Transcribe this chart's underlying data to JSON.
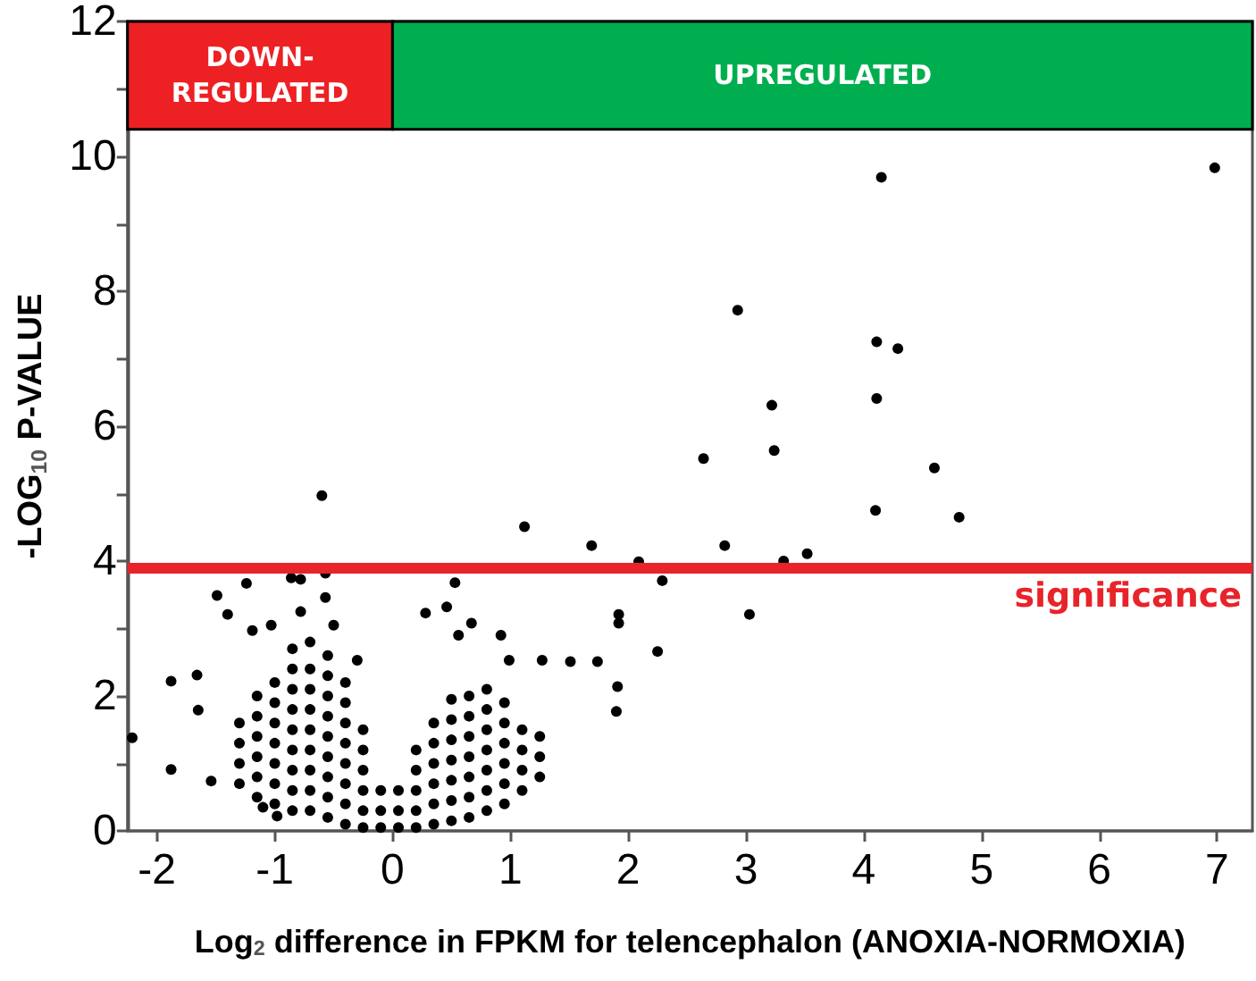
{
  "chart_data": {
    "type": "scatter",
    "xlabel": "Log$_{2}$ difference in FPKM for telencephalon (ANOXIA-NORMOXIA)",
    "ylabel": "-LOG$_{10}$ P-VALUE",
    "xlim": [
      -2.25,
      7.3
    ],
    "xticks": [
      -2,
      -1,
      0,
      1,
      2,
      3,
      4,
      5,
      6,
      7
    ],
    "ylim": [
      0,
      12
    ],
    "yticks": [
      0,
      {
        "value": 1,
        "label": null
      },
      2,
      {
        "value": 3,
        "label": null
      },
      4,
      {
        "value": 5,
        "label": null
      },
      6,
      {
        "value": 7,
        "label": null
      },
      8,
      {
        "value": 9,
        "label": null
      },
      10,
      {
        "value": 11,
        "label": null
      },
      12
    ],
    "marker": "circle",
    "color": "#000000",
    "ref_lines": [
      {
        "axis": "y",
        "value": 3.9,
        "label": "significance",
        "color": "#e8232a"
      }
    ],
    "bands": [
      {
        "axis": "x",
        "from": -2.25,
        "to": 0,
        "label": "DOWN-REGULATED",
        "color": "#ed2024"
      },
      {
        "axis": "x",
        "from": 0,
        "to": 7.3,
        "label": "UPREGULATED",
        "color": "#00ae4f"
      }
    ],
    "x": [
      4.15,
      6.98,
      2.93,
      4.11,
      4.29,
      3.22,
      4.11,
      2.64,
      3.24,
      4.6,
      4.1,
      4.81,
      2.82,
      3.32,
      3.52,
      1.12,
      1.69,
      2.09,
      2.29,
      3.03,
      1.92,
      1.92,
      2.25,
      1.91,
      1.9,
      1.74,
      1.51,
      0.53,
      0.67,
      0.46,
      0.28,
      0.56,
      0.92,
      0.99,
      1.27,
      -2.21,
      -1.88,
      -1.88,
      -1.66,
      -1.49,
      -1.4,
      -1.24,
      -1.19,
      -1.03,
      -0.86,
      -0.78,
      -0.57,
      -0.57,
      -0.78,
      -0.5,
      -0.3,
      -1.65,
      -1.54,
      -1.1,
      -0.98,
      -0.6,
      -1.3,
      -1.3,
      -1.3,
      -1.3,
      -1.15,
      -1.15,
      -1.15,
      -1.15,
      -1.15,
      -1.15,
      -1.0,
      -1.0,
      -1.0,
      -1.0,
      -1.0,
      -1.0,
      -1.0,
      -0.85,
      -0.85,
      -0.85,
      -0.85,
      -0.85,
      -0.85,
      -0.85,
      -0.85,
      -0.85,
      -0.7,
      -0.7,
      -0.7,
      -0.7,
      -0.7,
      -0.7,
      -0.7,
      -0.7,
      -0.7,
      -0.55,
      -0.55,
      -0.55,
      -0.55,
      -0.55,
      -0.55,
      -0.55,
      -0.55,
      -0.55,
      -0.4,
      -0.4,
      -0.4,
      -0.4,
      -0.4,
      -0.4,
      -0.4,
      -0.4,
      -0.25,
      -0.25,
      -0.25,
      -0.25,
      -0.25,
      -0.25,
      -0.1,
      -0.1,
      -0.1,
      0.05,
      0.05,
      0.05,
      0.2,
      0.2,
      0.2,
      0.2,
      0.2,
      0.35,
      0.35,
      0.35,
      0.35,
      0.35,
      0.35,
      0.5,
      0.5,
      0.5,
      0.5,
      0.5,
      0.5,
      0.5,
      0.65,
      0.65,
      0.65,
      0.65,
      0.65,
      0.65,
      0.65,
      0.8,
      0.8,
      0.8,
      0.8,
      0.8,
      0.8,
      0.8,
      0.95,
      0.95,
      0.95,
      0.95,
      0.95,
      0.95,
      1.1,
      1.1,
      1.1,
      1.1,
      1.25,
      1.25,
      1.25
    ],
    "values": [
      9.69,
      9.83,
      7.72,
      7.25,
      7.15,
      6.31,
      6.41,
      5.52,
      5.64,
      5.38,
      4.75,
      4.65,
      4.23,
      4.0,
      4.11,
      4.51,
      4.23,
      3.99,
      3.71,
      3.21,
      3.21,
      3.08,
      2.66,
      2.14,
      1.77,
      2.51,
      2.51,
      3.68,
      3.08,
      3.32,
      3.23,
      2.9,
      2.9,
      2.53,
      2.53,
      1.38,
      0.91,
      2.22,
      2.31,
      3.49,
      3.21,
      3.67,
      2.97,
      3.05,
      3.75,
      3.73,
      3.82,
      3.46,
      3.25,
      3.05,
      2.53,
      1.79,
      0.74,
      0.35,
      0.22,
      4.97,
      0.7,
      1.0,
      1.3,
      1.6,
      0.5,
      0.8,
      1.1,
      1.4,
      1.7,
      2.0,
      0.4,
      0.7,
      1.0,
      1.3,
      1.6,
      1.9,
      2.2,
      0.3,
      0.6,
      0.9,
      1.2,
      1.5,
      1.8,
      2.1,
      2.4,
      2.7,
      0.3,
      0.6,
      0.9,
      1.2,
      1.5,
      1.8,
      2.1,
      2.4,
      2.8,
      0.2,
      0.5,
      0.8,
      1.1,
      1.4,
      1.7,
      2.0,
      2.3,
      2.6,
      0.1,
      0.4,
      0.7,
      1.0,
      1.3,
      1.6,
      1.9,
      2.2,
      0.05,
      0.3,
      0.6,
      0.9,
      1.2,
      1.5,
      0.05,
      0.3,
      0.6,
      0.05,
      0.3,
      0.6,
      0.05,
      0.3,
      0.6,
      0.9,
      1.2,
      0.1,
      0.4,
      0.7,
      1.0,
      1.3,
      1.6,
      0.15,
      0.45,
      0.75,
      1.05,
      1.35,
      1.65,
      1.95,
      0.2,
      0.5,
      0.8,
      1.1,
      1.4,
      1.7,
      2.0,
      0.3,
      0.6,
      0.9,
      1.2,
      1.5,
      1.8,
      2.1,
      0.4,
      0.7,
      1.0,
      1.3,
      1.6,
      1.9,
      0.6,
      0.9,
      1.2,
      1.5,
      0.8,
      1.1,
      1.4
    ]
  }
}
